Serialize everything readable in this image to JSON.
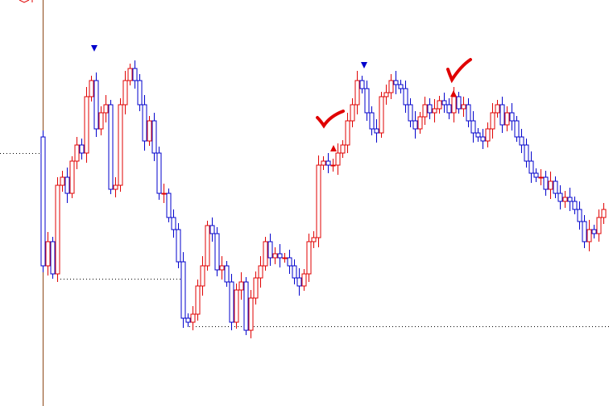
{
  "chart_data": {
    "type": "candlestick",
    "up_color": "#e00000",
    "down_color": "#0000cc",
    "ylim": [
      0,
      504
    ],
    "open": [
      334,
      174,
      204,
      164,
      274,
      284,
      264,
      304,
      324,
      314,
      384,
      404,
      344,
      364,
      374,
      269,
      274,
      374,
      404,
      419,
      404,
      374,
      329,
      354,
      314,
      264,
      264,
      234,
      219,
      179,
      109,
      104,
      114,
      149,
      174,
      224,
      214,
      169,
      174,
      154,
      104,
      144,
      154,
      94,
      134,
      159,
      174,
      204,
      184,
      189,
      184,
      184,
      174,
      159,
      149,
      164,
      204,
      209,
      299,
      304,
      299,
      299,
      314,
      324,
      354,
      374,
      404,
      394,
      364,
      344,
      339,
      384,
      389,
      404,
      399,
      394,
      374,
      354,
      344,
      359,
      374,
      364,
      369,
      379,
      374,
      364,
      384,
      369,
      374,
      354,
      339,
      334,
      329,
      344,
      364,
      374,
      349,
      364,
      354,
      334,
      324,
      304,
      289,
      284,
      284,
      269,
      279,
      264,
      254,
      259,
      254,
      244,
      229,
      204,
      219,
      214,
      234
    ],
    "high": [
      342,
      216,
      210,
      284,
      292,
      296,
      310,
      334,
      332,
      396,
      410,
      414,
      372,
      386,
      380,
      284,
      382,
      416,
      425,
      429,
      412,
      386,
      360,
      364,
      322,
      276,
      270,
      244,
      227,
      191,
      115,
      124,
      157,
      186,
      230,
      234,
      222,
      186,
      180,
      164,
      152,
      166,
      160,
      144,
      167,
      186,
      210,
      214,
      197,
      201,
      190,
      194,
      182,
      171,
      170,
      214,
      217,
      311,
      310,
      314,
      307,
      326,
      330,
      364,
      382,
      416,
      410,
      404,
      372,
      356,
      390,
      399,
      412,
      416,
      405,
      404,
      382,
      366,
      365,
      384,
      382,
      381,
      385,
      389,
      382,
      396,
      390,
      384,
      382,
      366,
      345,
      344,
      352,
      376,
      380,
      384,
      372,
      376,
      360,
      344,
      332,
      316,
      295,
      294,
      292,
      291,
      285,
      274,
      267,
      271,
      260,
      254,
      237,
      231,
      225,
      244,
      252
    ],
    "low": [
      166,
      162,
      158,
      154,
      266,
      252,
      258,
      294,
      306,
      302,
      378,
      334,
      336,
      352,
      263,
      259,
      266,
      362,
      398,
      394,
      366,
      317,
      323,
      304,
      256,
      252,
      228,
      209,
      171,
      97,
      98,
      94,
      106,
      137,
      168,
      204,
      161,
      157,
      148,
      94,
      96,
      132,
      88,
      84,
      126,
      147,
      168,
      174,
      176,
      172,
      178,
      164,
      151,
      137,
      143,
      154,
      196,
      197,
      293,
      289,
      291,
      287,
      308,
      314,
      346,
      362,
      388,
      354,
      336,
      327,
      333,
      374,
      381,
      387,
      388,
      364,
      346,
      332,
      338,
      349,
      356,
      352,
      363,
      364,
      356,
      352,
      363,
      359,
      346,
      327,
      328,
      319,
      321,
      332,
      358,
      339,
      341,
      342,
      328,
      314,
      296,
      277,
      278,
      274,
      261,
      257,
      258,
      244,
      246,
      242,
      238,
      219,
      196,
      192,
      208,
      204,
      226
    ],
    "close": [
      174,
      204,
      164,
      274,
      284,
      264,
      304,
      324,
      314,
      384,
      404,
      344,
      364,
      374,
      269,
      274,
      374,
      404,
      419,
      404,
      374,
      329,
      354,
      314,
      264,
      264,
      234,
      219,
      179,
      109,
      104,
      114,
      149,
      174,
      224,
      214,
      169,
      174,
      154,
      104,
      144,
      154,
      94,
      134,
      159,
      174,
      204,
      184,
      189,
      184,
      184,
      174,
      159,
      149,
      164,
      204,
      209,
      299,
      304,
      299,
      299,
      314,
      324,
      354,
      374,
      404,
      394,
      364,
      344,
      339,
      384,
      389,
      404,
      399,
      394,
      374,
      354,
      344,
      359,
      374,
      364,
      369,
      379,
      374,
      364,
      384,
      369,
      374,
      354,
      339,
      334,
      329,
      344,
      364,
      374,
      349,
      364,
      354,
      334,
      324,
      304,
      289,
      284,
      284,
      269,
      279,
      264,
      254,
      259,
      254,
      244,
      229,
      204,
      219,
      214,
      234,
      244
    ]
  }
}
